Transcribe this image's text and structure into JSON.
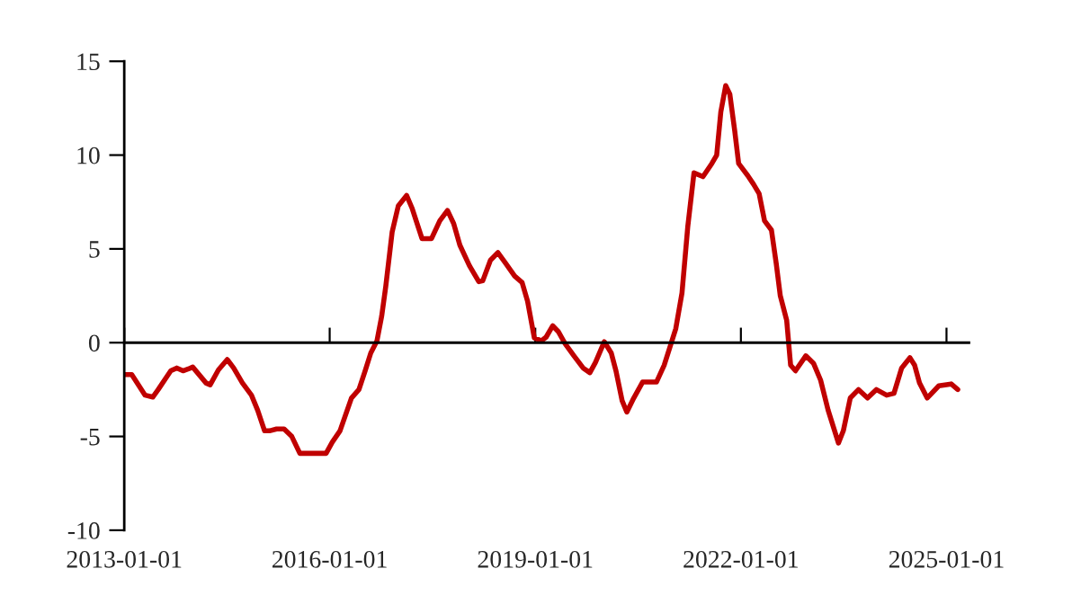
{
  "chart_data": {
    "type": "line",
    "x": [
      "2013-01-01",
      "2013-02-10",
      "2013-04-22",
      "2013-06-02",
      "2013-07-01",
      "2013-09-06",
      "2013-10-08",
      "2013-11-10",
      "2013-12-09",
      "2014-01-01",
      "2014-03-13",
      "2014-04-04",
      "2014-05-18",
      "2014-07-04",
      "2014-08-07",
      "2014-09-23",
      "2014-11-10",
      "2014-12-13",
      "2015-01-19",
      "2015-02-14",
      "2015-03-24",
      "2015-05-03",
      "2015-06-13",
      "2015-07-26",
      "2015-10-26",
      "2015-12-13",
      "2016-01-15",
      "2016-02-25",
      "2016-04-26",
      "2016-06-05",
      "2016-07-08",
      "2016-08-07",
      "2016-09-09",
      "2016-10-04",
      "2016-10-26",
      "2016-11-29",
      "2017-01-01",
      "2017-02-14",
      "2017-03-16",
      "2017-05-07",
      "2017-06-27",
      "2017-08-10",
      "2017-09-20",
      "2017-10-23",
      "2017-11-25",
      "2018-01-15",
      "2018-03-06",
      "2018-03-27",
      "2018-05-07",
      "2018-06-16",
      "2018-07-26",
      "2018-09-13",
      "2018-10-23",
      "2018-11-21",
      "2018-12-27",
      "2019-02-03",
      "2019-02-28",
      "2019-04-04",
      "2019-05-03",
      "2019-06-09",
      "2019-07-26",
      "2019-09-13",
      "2019-10-19",
      "2019-11-18",
      "2020-01-04",
      "2020-02-10",
      "2020-03-06",
      "2020-04-08",
      "2020-05-03",
      "2020-06-09",
      "2020-07-26",
      "2020-10-08",
      "2020-11-18",
      "2020-12-20",
      "2021-01-19",
      "2021-02-21",
      "2021-03-24",
      "2021-04-26",
      "2021-06-13",
      "2021-07-30",
      "2021-08-25",
      "2021-09-16",
      "2021-10-12",
      "2021-11-03",
      "2021-11-29",
      "2021-12-20",
      "2022-02-07",
      "2022-03-09",
      "2022-04-08",
      "2022-05-07",
      "2022-06-13",
      "2022-07-08",
      "2022-07-30",
      "2022-09-02",
      "2022-09-23",
      "2022-10-19",
      "2022-12-13",
      "2023-01-23",
      "2023-03-02",
      "2023-04-11",
      "2023-06-05",
      "2023-07-01",
      "2023-08-07",
      "2023-09-20",
      "2023-11-07",
      "2023-12-24",
      "2024-02-17",
      "2024-03-27",
      "2024-05-07",
      "2024-06-20",
      "2024-07-15",
      "2024-08-10",
      "2024-09-20",
      "2024-11-21",
      "2025-01-26",
      "2025-03-02"
    ],
    "series": [
      {
        "color": "#c00000",
        "values": [
          -1.7,
          -1.7,
          -2.8,
          -2.9,
          -2.5,
          -1.5,
          -1.35,
          -1.5,
          -1.4,
          -1.3,
          -2.15,
          -2.25,
          -1.45,
          -0.9,
          -1.35,
          -2.15,
          -2.8,
          -3.6,
          -4.7,
          -4.7,
          -4.6,
          -4.6,
          -5.0,
          -5.9,
          -5.9,
          -5.9,
          -5.3,
          -4.7,
          -2.95,
          -2.5,
          -1.5,
          -0.55,
          0.1,
          1.4,
          3.0,
          5.9,
          7.3,
          7.85,
          7.15,
          5.55,
          5.55,
          6.5,
          7.05,
          6.35,
          5.2,
          4.1,
          3.25,
          3.3,
          4.4,
          4.8,
          4.25,
          3.55,
          3.2,
          2.2,
          0.25,
          0.1,
          0.3,
          0.9,
          0.6,
          -0.05,
          -0.7,
          -1.35,
          -1.6,
          -1.05,
          0.05,
          -0.55,
          -1.5,
          -3.1,
          -3.7,
          -2.95,
          -2.1,
          -2.1,
          -1.2,
          -0.2,
          0.75,
          2.65,
          6.2,
          9.05,
          8.85,
          9.55,
          10.0,
          12.3,
          13.7,
          13.25,
          11.3,
          9.55,
          8.9,
          8.45,
          7.95,
          6.5,
          6.0,
          4.25,
          2.5,
          1.2,
          -1.2,
          -1.5,
          -0.7,
          -1.1,
          -2.0,
          -3.6,
          -5.35,
          -4.7,
          -2.95,
          -2.5,
          -2.95,
          -2.5,
          -2.8,
          -2.7,
          -1.35,
          -0.8,
          -1.2,
          -2.15,
          -2.95,
          -2.3,
          -2.2,
          -2.5
        ]
      }
    ],
    "xlim": [
      "2013-01-01",
      "2025-05-01"
    ],
    "xticks": [
      {
        "value": "2013-01-01",
        "label": "2013-01-01"
      },
      {
        "value": "2016-01-01",
        "label": "2016-01-01"
      },
      {
        "value": "2019-01-01",
        "label": "2019-01-01"
      },
      {
        "value": "2022-01-01",
        "label": "2022-01-01"
      },
      {
        "value": "2025-01-01",
        "label": "2025-01-01"
      }
    ],
    "ylim": [
      -10,
      15
    ],
    "yticks": [
      -10,
      -5,
      0,
      5,
      10,
      15
    ],
    "marker": "none",
    "line_style": "solid"
  }
}
